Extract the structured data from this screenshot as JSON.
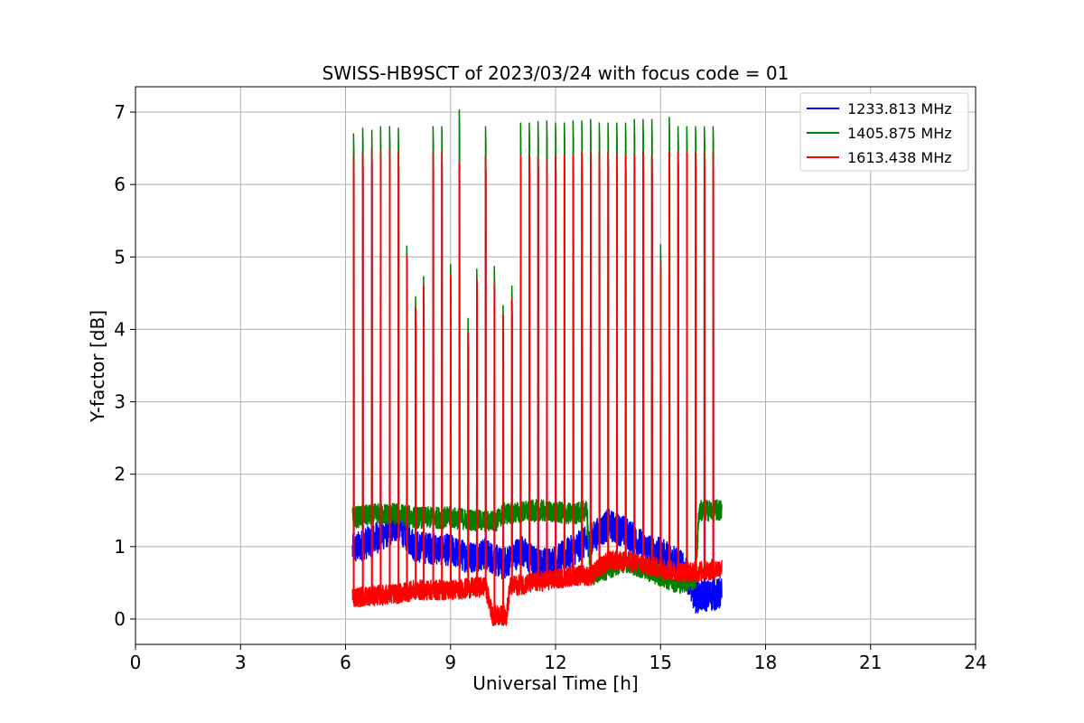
{
  "chart_data": {
    "type": "line",
    "title": "SWISS-HB9SCT of 2023/03/24 with focus code = 01",
    "xlabel": "Universal Time [h]",
    "ylabel": "Y-factor [dB]",
    "xlim": [
      0,
      24
    ],
    "ylim": [
      -0.35,
      7.35
    ],
    "xticks": [
      0,
      3,
      6,
      9,
      12,
      15,
      18,
      21,
      24
    ],
    "yticks": [
      0,
      1,
      2,
      3,
      4,
      5,
      6,
      7
    ],
    "grid": true,
    "legend_position": "top-right",
    "x_range_of_data": [
      6.2,
      16.75
    ],
    "calibration_spike_times": [
      6.23,
      6.49,
      6.75,
      7.0,
      7.26,
      7.51,
      7.75,
      8.0,
      8.23,
      8.5,
      8.75,
      9.0,
      9.25,
      9.5,
      9.75,
      10.0,
      10.25,
      10.5,
      10.75,
      11.0,
      11.25,
      11.5,
      11.75,
      12.0,
      12.25,
      12.5,
      12.75,
      13.0,
      13.25,
      13.5,
      13.75,
      14.0,
      14.25,
      14.5,
      14.75,
      15.0,
      15.25,
      15.5,
      15.75,
      16.0,
      16.25,
      16.5
    ],
    "series": [
      {
        "name": "1233.813 MHz",
        "color": "#0000ff",
        "baseline": [
          [
            6.2,
            0.95
          ],
          [
            7.0,
            1.15
          ],
          [
            7.5,
            1.3
          ],
          [
            8.0,
            1.0
          ],
          [
            9.0,
            0.95
          ],
          [
            9.5,
            0.85
          ],
          [
            10.0,
            0.9
          ],
          [
            10.5,
            0.75
          ],
          [
            11.0,
            0.95
          ],
          [
            11.5,
            0.75
          ],
          [
            12.0,
            0.8
          ],
          [
            12.5,
            0.95
          ],
          [
            13.0,
            1.1
          ],
          [
            13.5,
            1.3
          ],
          [
            14.0,
            1.2
          ],
          [
            14.5,
            1.0
          ],
          [
            15.0,
            0.9
          ],
          [
            15.5,
            0.8
          ],
          [
            15.75,
            0.6
          ],
          [
            16.0,
            0.3
          ],
          [
            16.75,
            0.35
          ]
        ],
        "noise": 0.22,
        "spike_peaks": [
          6.4,
          6.45,
          6.5,
          6.45,
          6.5,
          6.45,
          5.0,
          4.3,
          4.6,
          6.45,
          6.45,
          4.75,
          6.3,
          3.95,
          4.7,
          6.4,
          4.65,
          4.2,
          4.4,
          6.4,
          6.4,
          6.4,
          6.35,
          6.4,
          6.4,
          6.4,
          6.45,
          6.45,
          6.45,
          6.45,
          6.4,
          6.4,
          6.4,
          6.45,
          6.4,
          4.95,
          6.45,
          6.45,
          6.45,
          6.45,
          6.45,
          6.45
        ]
      },
      {
        "name": "1405.875 MHz",
        "color": "#008000",
        "baseline": [
          [
            6.2,
            1.4
          ],
          [
            7.0,
            1.45
          ],
          [
            7.5,
            1.45
          ],
          [
            8.0,
            1.4
          ],
          [
            9.0,
            1.4
          ],
          [
            10.0,
            1.35
          ],
          [
            10.3,
            1.35
          ],
          [
            10.5,
            1.45
          ],
          [
            11.5,
            1.5
          ],
          [
            12.5,
            1.45
          ],
          [
            12.9,
            1.5
          ],
          [
            13.0,
            0.6
          ],
          [
            14.0,
            0.8
          ],
          [
            15.0,
            0.6
          ],
          [
            15.5,
            0.5
          ],
          [
            16.0,
            0.55
          ],
          [
            16.1,
            1.5
          ],
          [
            16.75,
            1.5
          ]
        ],
        "noise": 0.15,
        "spike_peaks": [
          6.7,
          6.78,
          6.75,
          6.8,
          6.8,
          6.78,
          5.15,
          4.45,
          4.73,
          6.8,
          6.8,
          4.9,
          7.03,
          4.15,
          4.83,
          6.8,
          4.87,
          4.33,
          4.6,
          6.85,
          6.85,
          6.87,
          6.88,
          6.85,
          6.85,
          6.88,
          6.88,
          6.9,
          6.85,
          6.85,
          6.85,
          6.85,
          6.9,
          6.9,
          6.9,
          5.17,
          6.93,
          6.8,
          6.8,
          6.8,
          6.8,
          6.8
        ]
      },
      {
        "name": "1613.438 MHz",
        "color": "#ff0000",
        "baseline": [
          [
            6.2,
            0.3
          ],
          [
            7.5,
            0.35
          ],
          [
            8.0,
            0.4
          ],
          [
            9.0,
            0.4
          ],
          [
            10.0,
            0.45
          ],
          [
            10.2,
            0.05
          ],
          [
            10.6,
            0.05
          ],
          [
            10.7,
            0.45
          ],
          [
            12.0,
            0.55
          ],
          [
            12.5,
            0.6
          ],
          [
            13.0,
            0.6
          ],
          [
            13.5,
            0.8
          ],
          [
            14.0,
            0.8
          ],
          [
            14.5,
            0.75
          ],
          [
            15.0,
            0.7
          ],
          [
            15.5,
            0.65
          ],
          [
            16.0,
            0.65
          ],
          [
            16.75,
            0.7
          ]
        ],
        "noise": 0.14,
        "spike_peaks": [
          6.4,
          6.45,
          6.5,
          6.45,
          6.5,
          6.45,
          5.0,
          4.3,
          4.6,
          6.45,
          6.45,
          4.75,
          6.3,
          3.95,
          4.7,
          6.4,
          4.65,
          4.2,
          4.4,
          6.4,
          6.4,
          6.4,
          6.35,
          6.4,
          6.4,
          6.4,
          6.45,
          6.45,
          6.45,
          6.45,
          6.4,
          6.4,
          6.4,
          6.45,
          6.4,
          4.95,
          6.45,
          6.45,
          6.45,
          6.45,
          6.45,
          6.45
        ]
      }
    ]
  }
}
